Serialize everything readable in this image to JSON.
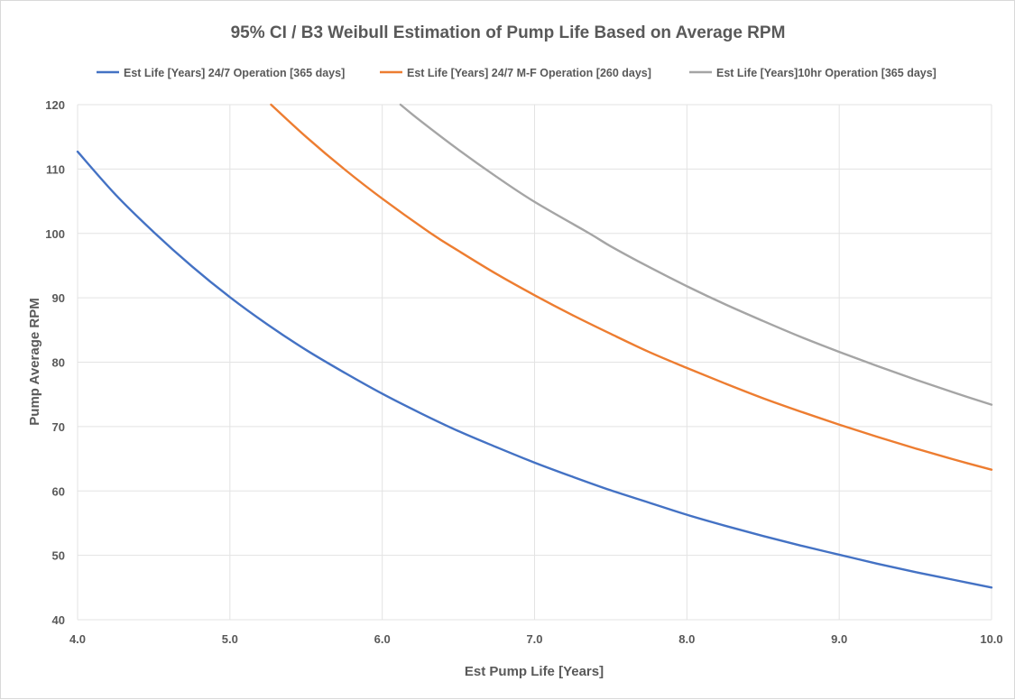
{
  "chart_data": {
    "type": "line",
    "title": "95% CI / B3 Weibull Estimation of Pump Life Based on Average RPM",
    "xlabel": "Est Pump Life [Years]",
    "ylabel": "Pump Average RPM",
    "xlim": [
      4.0,
      10.0
    ],
    "ylim": [
      40,
      120
    ],
    "x_ticks": [
      "4.0",
      "5.0",
      "6.0",
      "7.0",
      "8.0",
      "9.0",
      "10.0"
    ],
    "y_ticks": [
      "40",
      "50",
      "60",
      "70",
      "80",
      "90",
      "100",
      "110",
      "120"
    ],
    "grid": true,
    "legend_position": "top",
    "series": [
      {
        "name": "Est Life [Years] 24/7 Operation [365 days]",
        "color": "#4472C4",
        "points": [
          {
            "x": 4.0,
            "y": 112.7
          },
          {
            "x": 4.25,
            "y": 106.0
          },
          {
            "x": 4.5,
            "y": 100.2
          },
          {
            "x": 4.75,
            "y": 94.9
          },
          {
            "x": 5.0,
            "y": 90.1
          },
          {
            "x": 5.25,
            "y": 85.8
          },
          {
            "x": 5.5,
            "y": 81.9
          },
          {
            "x": 5.75,
            "y": 78.4
          },
          {
            "x": 6.0,
            "y": 75.1
          },
          {
            "x": 6.25,
            "y": 72.1
          },
          {
            "x": 6.5,
            "y": 69.3
          },
          {
            "x": 6.75,
            "y": 66.8
          },
          {
            "x": 7.0,
            "y": 64.4
          },
          {
            "x": 7.25,
            "y": 62.2
          },
          {
            "x": 7.5,
            "y": 60.1
          },
          {
            "x": 7.75,
            "y": 58.2
          },
          {
            "x": 8.0,
            "y": 56.3
          },
          {
            "x": 8.25,
            "y": 54.6
          },
          {
            "x": 8.5,
            "y": 53.0
          },
          {
            "x": 8.75,
            "y": 51.5
          },
          {
            "x": 9.0,
            "y": 50.1
          },
          {
            "x": 9.25,
            "y": 48.7
          },
          {
            "x": 9.5,
            "y": 47.4
          },
          {
            "x": 9.75,
            "y": 46.2
          },
          {
            "x": 10.0,
            "y": 45.0
          }
        ]
      },
      {
        "name": "Est Life [Years] 24/7 M-F Operation [260 days]",
        "color": "#ED7D31",
        "points": [
          {
            "x": 5.27,
            "y": 120.0
          },
          {
            "x": 5.5,
            "y": 115.0
          },
          {
            "x": 5.75,
            "y": 110.0
          },
          {
            "x": 6.0,
            "y": 105.4
          },
          {
            "x": 6.32,
            "y": 100.0
          },
          {
            "x": 6.5,
            "y": 97.3
          },
          {
            "x": 6.75,
            "y": 93.7
          },
          {
            "x": 7.0,
            "y": 90.4
          },
          {
            "x": 7.25,
            "y": 87.3
          },
          {
            "x": 7.5,
            "y": 84.4
          },
          {
            "x": 7.75,
            "y": 81.6
          },
          {
            "x": 8.0,
            "y": 79.1
          },
          {
            "x": 8.25,
            "y": 76.7
          },
          {
            "x": 8.5,
            "y": 74.4
          },
          {
            "x": 8.75,
            "y": 72.3
          },
          {
            "x": 9.0,
            "y": 70.3
          },
          {
            "x": 9.25,
            "y": 68.4
          },
          {
            "x": 9.5,
            "y": 66.6
          },
          {
            "x": 9.75,
            "y": 64.9
          },
          {
            "x": 10.0,
            "y": 63.3
          }
        ]
      },
      {
        "name": "Est Life [Years]10hr Operation [365 days]",
        "color": "#A5A5A5",
        "points": [
          {
            "x": 6.12,
            "y": 120.0
          },
          {
            "x": 6.25,
            "y": 117.5
          },
          {
            "x": 6.5,
            "y": 113.0
          },
          {
            "x": 6.75,
            "y": 108.8
          },
          {
            "x": 7.0,
            "y": 104.9
          },
          {
            "x": 7.36,
            "y": 100.0
          },
          {
            "x": 7.5,
            "y": 98.0
          },
          {
            "x": 7.75,
            "y": 94.8
          },
          {
            "x": 8.0,
            "y": 91.8
          },
          {
            "x": 8.25,
            "y": 89.0
          },
          {
            "x": 8.5,
            "y": 86.4
          },
          {
            "x": 8.75,
            "y": 83.9
          },
          {
            "x": 9.0,
            "y": 81.6
          },
          {
            "x": 9.25,
            "y": 79.4
          },
          {
            "x": 9.5,
            "y": 77.3
          },
          {
            "x": 9.75,
            "y": 75.3
          },
          {
            "x": 10.0,
            "y": 73.4
          }
        ]
      }
    ]
  }
}
